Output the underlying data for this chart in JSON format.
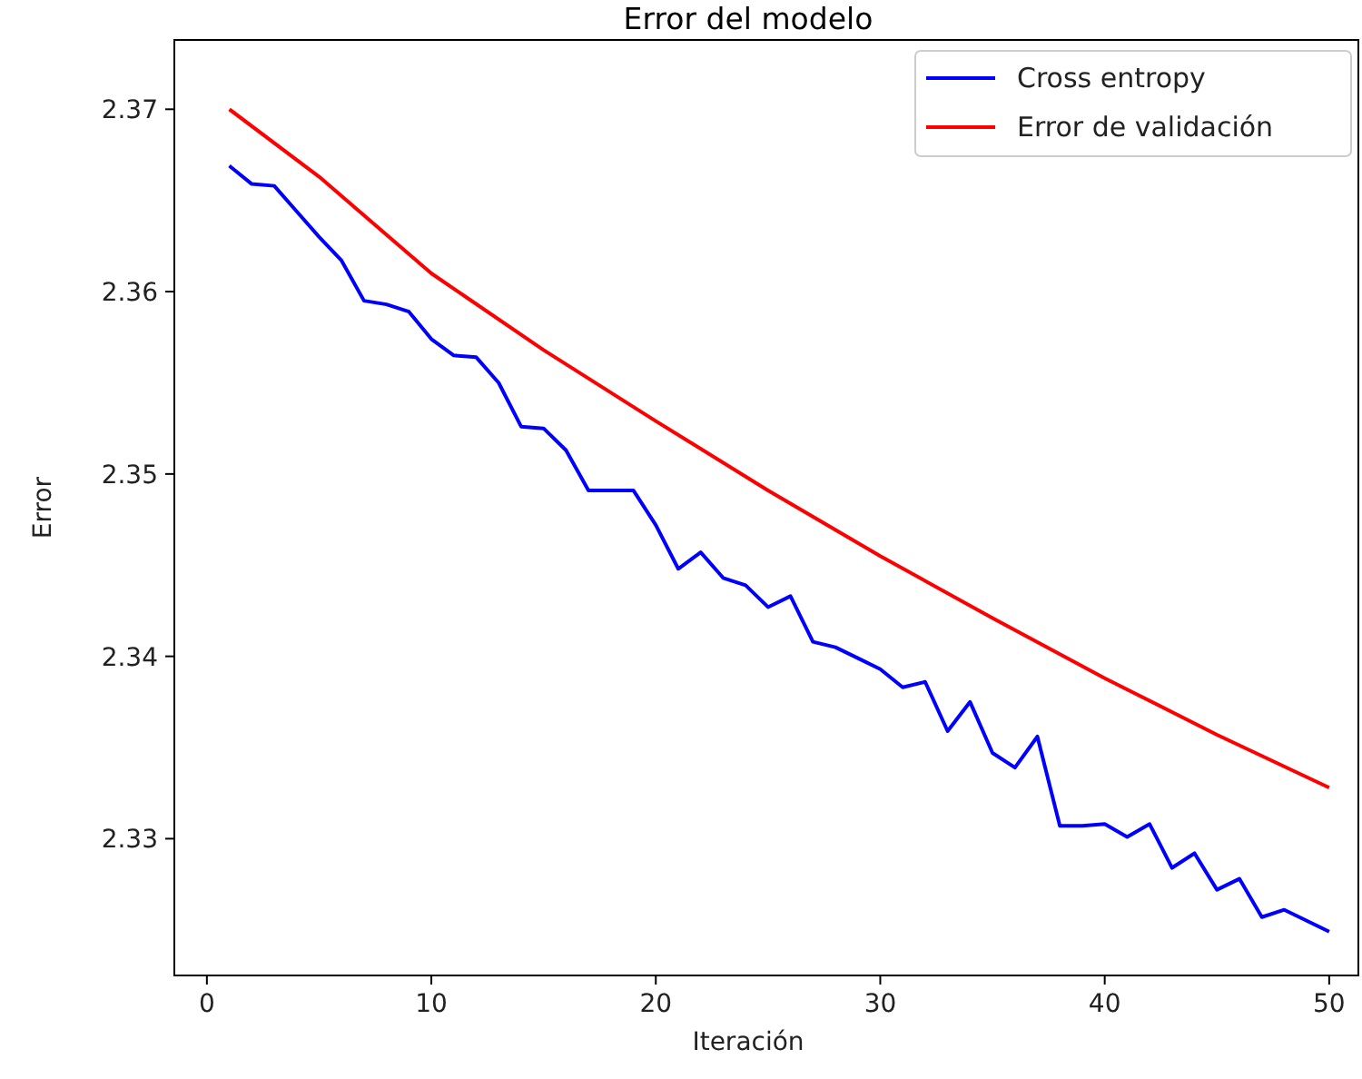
{
  "chart_data": {
    "type": "line",
    "title": "Error del modelo",
    "xlabel": "Iteración",
    "ylabel": "Error",
    "xlim": [
      -1.45,
      51.3
    ],
    "ylim": [
      2.3225,
      2.3738
    ],
    "xticks": [
      0,
      10,
      20,
      30,
      40,
      50
    ],
    "yticks": [
      {
        "value": 2.33,
        "label": "2.33"
      },
      {
        "value": 2.34,
        "label": "2.34"
      },
      {
        "value": 2.35,
        "label": "2.35"
      },
      {
        "value": 2.36,
        "label": "2.36"
      },
      {
        "value": 2.37,
        "label": "2.37"
      }
    ],
    "legend": "top right",
    "grid": false,
    "series": [
      {
        "name": "Cross entropy",
        "color": "#0000ff",
        "x": [
          1,
          2,
          3,
          4,
          5,
          6,
          7,
          8,
          9,
          10,
          11,
          12,
          13,
          14,
          15,
          16,
          17,
          18,
          19,
          20,
          21,
          22,
          23,
          24,
          25,
          26,
          27,
          28,
          29,
          30,
          31,
          32,
          33,
          34,
          35,
          36,
          37,
          38,
          39,
          40,
          41,
          42,
          43,
          44,
          45,
          46,
          47,
          48,
          49,
          50
        ],
        "values": [
          2.3669,
          2.3659,
          2.3658,
          2.3644,
          2.363,
          2.3617,
          2.3595,
          2.3593,
          2.3589,
          2.3574,
          2.3565,
          2.3564,
          2.355,
          2.3526,
          2.3525,
          2.3513,
          2.3491,
          2.3491,
          2.3491,
          2.3472,
          2.3448,
          2.3457,
          2.3443,
          2.3439,
          2.3427,
          2.3433,
          2.3408,
          2.3405,
          2.3399,
          2.3393,
          2.3383,
          2.3386,
          2.3359,
          2.3375,
          2.3347,
          2.3339,
          2.3356,
          2.3307,
          2.3307,
          2.3308,
          2.3301,
          2.3308,
          2.3284,
          2.3292,
          2.3272,
          2.3278,
          2.3257,
          2.3261,
          2.3255,
          2.3249
        ]
      },
      {
        "name": "Error de validación",
        "color": "#ff0000",
        "x": [
          1,
          5,
          10,
          15,
          20,
          25,
          30,
          35,
          40,
          45,
          50
        ],
        "values": [
          2.37,
          2.3663,
          2.361,
          2.3568,
          2.3529,
          2.3491,
          2.3455,
          2.3421,
          2.3388,
          2.3357,
          2.3328
        ]
      }
    ]
  }
}
